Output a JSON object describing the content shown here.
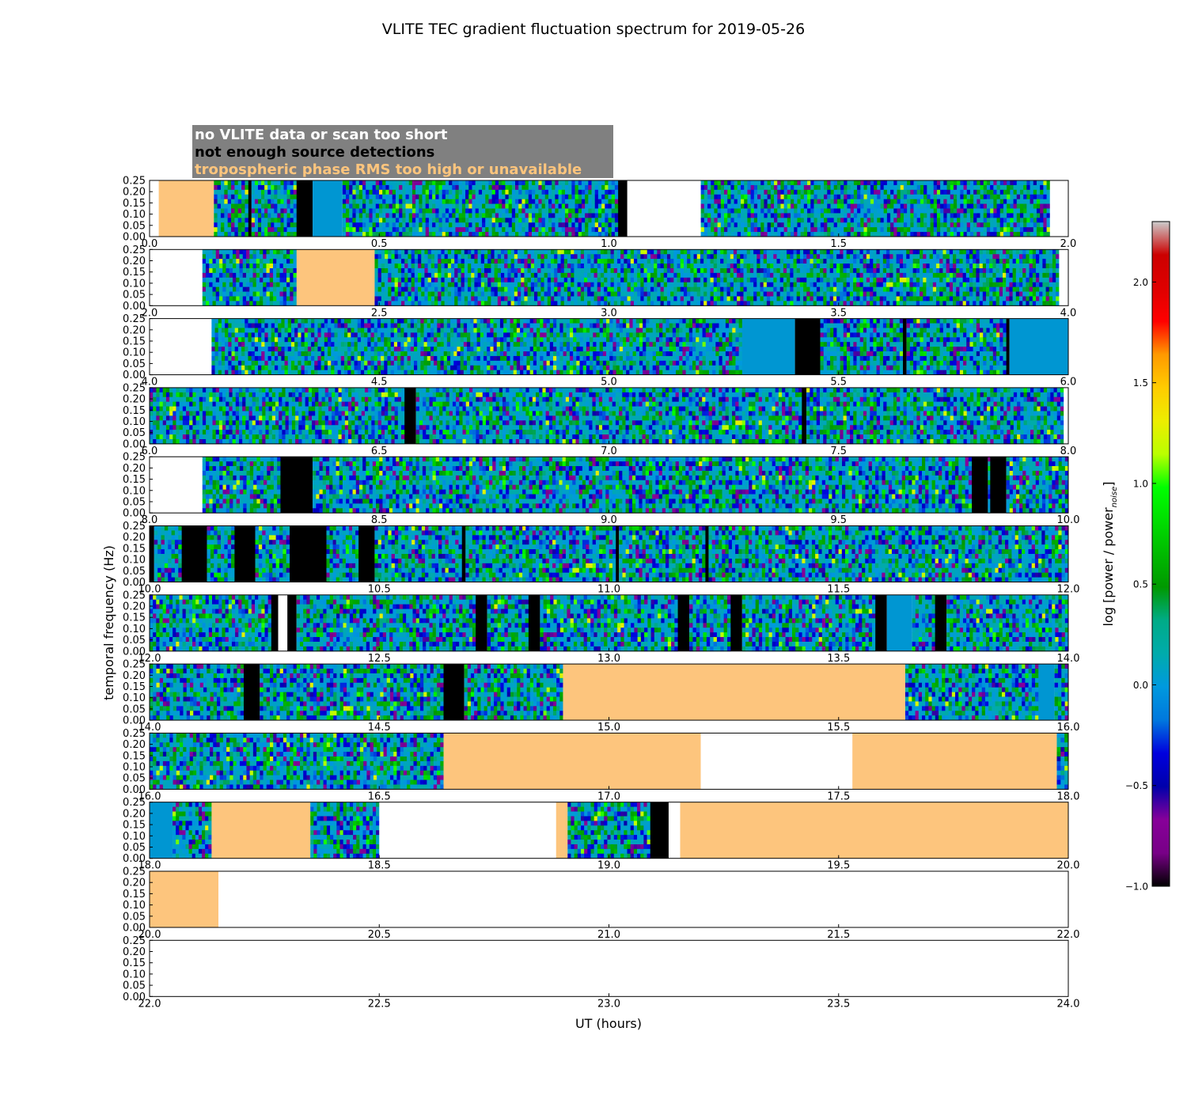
{
  "chart_data": {
    "type": "heatmap",
    "title": "VLITE TEC gradient fluctuation spectrum for 2019-05-26",
    "xlabel": "UT (hours)",
    "ylabel": "temporal frequency (Hz)",
    "ylim": [
      0,
      0.25
    ],
    "yticks": [
      "0.00",
      "0.05",
      "0.10",
      "0.15",
      "0.20",
      "0.25"
    ],
    "colorbar": {
      "label": "log [power / power",
      "label_sub": "noise",
      "label_end": "]",
      "range": [
        -1.0,
        2.3
      ],
      "ticks": [
        "−1.0",
        "−0.5",
        "0.0",
        "0.5",
        "1.0",
        "1.5",
        "2.0"
      ],
      "tick_values": [
        -1.0,
        -0.5,
        0.0,
        0.5,
        1.0,
        1.5,
        2.0
      ],
      "colormap": "nipy_spectral"
    },
    "legend": {
      "placement": "top-left",
      "background": "#808080",
      "entries": [
        {
          "label": "no VLITE data or scan too short",
          "color": "#ffffff"
        },
        {
          "label": "not enough source detections",
          "color": "#000000"
        },
        {
          "label": "tropospheric phase RMS too high or unavailable",
          "color": "#fdc57d"
        }
      ]
    },
    "flag_colors": {
      "nodata": "#ffffff",
      "nodet": "#000000",
      "trop": "#fdc57d",
      "quiet": "#0096d2"
    },
    "panels": [
      {
        "range": [
          0,
          2
        ],
        "ticks": [
          "0.0",
          "0.5",
          "1.0",
          "1.5",
          "2.0"
        ],
        "segments": [
          [
            "nodata",
            0.0,
            0.02
          ],
          [
            "trop",
            0.02,
            0.14
          ],
          [
            "data",
            0.14,
            0.215
          ],
          [
            "nodet",
            0.215,
            0.222
          ],
          [
            "data",
            0.222,
            0.32
          ],
          [
            "nodet",
            0.32,
            0.355
          ],
          [
            "quiet",
            0.355,
            0.42
          ],
          [
            "data",
            0.42,
            1.02
          ],
          [
            "nodet",
            1.02,
            1.04
          ],
          [
            "nodata",
            1.04,
            1.2
          ],
          [
            "data",
            1.2,
            1.96
          ],
          [
            "nodata",
            1.96,
            2.0
          ]
        ]
      },
      {
        "range": [
          2,
          4
        ],
        "ticks": [
          "2.0",
          "2.5",
          "3.0",
          "3.5",
          "4.0"
        ],
        "segments": [
          [
            "nodata",
            2.0,
            2.115
          ],
          [
            "data",
            2.115,
            2.32
          ],
          [
            "trop",
            2.32,
            2.49
          ],
          [
            "data",
            2.49,
            3.98
          ],
          [
            "nodata",
            3.98,
            4.0
          ]
        ]
      },
      {
        "range": [
          4,
          6
        ],
        "ticks": [
          "4.0",
          "4.5",
          "5.0",
          "5.5",
          "6.0"
        ],
        "segments": [
          [
            "nodata",
            4.0,
            4.135
          ],
          [
            "data",
            4.135,
            5.29
          ],
          [
            "quiet",
            5.29,
            5.405
          ],
          [
            "nodet",
            5.405,
            5.46
          ],
          [
            "data",
            5.46,
            5.64
          ],
          [
            "nodet",
            5.64,
            5.648
          ],
          [
            "data",
            5.648,
            5.865
          ],
          [
            "nodet",
            5.865,
            5.872
          ],
          [
            "quiet",
            5.872,
            6.0
          ]
        ]
      },
      {
        "range": [
          6,
          8
        ],
        "ticks": [
          "6.0",
          "6.5",
          "7.0",
          "7.5",
          "8.0"
        ],
        "segments": [
          [
            "data",
            6.0,
            6.555
          ],
          [
            "nodet",
            6.555,
            6.58
          ],
          [
            "data",
            6.58,
            7.42
          ],
          [
            "nodet",
            7.42,
            7.43
          ],
          [
            "data",
            7.43,
            7.99
          ],
          [
            "nodata",
            7.99,
            8.0
          ]
        ]
      },
      {
        "range": [
          8,
          10
        ],
        "ticks": [
          "8.0",
          "8.5",
          "9.0",
          "9.5",
          "10.0"
        ],
        "segments": [
          [
            "nodata",
            8.0,
            8.115
          ],
          [
            "data",
            8.115,
            8.285
          ],
          [
            "nodet",
            8.285,
            8.355
          ],
          [
            "data",
            8.355,
            9.79
          ],
          [
            "nodet",
            9.79,
            9.825
          ],
          [
            "data",
            9.825,
            9.83
          ],
          [
            "nodet",
            9.83,
            9.865
          ],
          [
            "data",
            9.865,
            10.0
          ]
        ]
      },
      {
        "range": [
          10,
          12
        ],
        "ticks": [
          "10.0",
          "10.5",
          "11.0",
          "11.5",
          "12.0"
        ],
        "segments": [
          [
            "nodet",
            10.0,
            10.01
          ],
          [
            "data",
            10.01,
            10.07
          ],
          [
            "nodet",
            10.07,
            10.125
          ],
          [
            "data",
            10.125,
            10.185
          ],
          [
            "nodet",
            10.185,
            10.23
          ],
          [
            "data",
            10.23,
            10.305
          ],
          [
            "nodet",
            10.305,
            10.385
          ],
          [
            "data",
            10.385,
            10.455
          ],
          [
            "nodet",
            10.455,
            10.49
          ],
          [
            "data",
            10.49,
            10.68
          ],
          [
            "nodet",
            10.68,
            10.688
          ],
          [
            "data",
            10.688,
            11.015
          ],
          [
            "nodet",
            11.015,
            11.022
          ],
          [
            "data",
            11.022,
            11.21
          ],
          [
            "nodet",
            11.21,
            11.217
          ],
          [
            "data",
            11.217,
            12.0
          ]
        ]
      },
      {
        "range": [
          12,
          14
        ],
        "ticks": [
          "12.0",
          "12.5",
          "13.0",
          "13.5",
          "14.0"
        ],
        "segments": [
          [
            "data",
            12.0,
            12.265
          ],
          [
            "nodet",
            12.265,
            12.28
          ],
          [
            "nodata",
            12.28,
            12.3
          ],
          [
            "nodet",
            12.3,
            12.32
          ],
          [
            "data",
            12.32,
            12.71
          ],
          [
            "nodet",
            12.71,
            12.735
          ],
          [
            "data",
            12.735,
            12.825
          ],
          [
            "nodet",
            12.825,
            12.85
          ],
          [
            "data",
            12.85,
            13.15
          ],
          [
            "nodet",
            13.15,
            13.175
          ],
          [
            "data",
            13.175,
            13.265
          ],
          [
            "nodet",
            13.265,
            13.29
          ],
          [
            "data",
            13.29,
            13.58
          ],
          [
            "nodet",
            13.58,
            13.605
          ],
          [
            "quiet",
            13.605,
            13.66
          ],
          [
            "data",
            13.66,
            13.71
          ],
          [
            "nodet",
            13.71,
            13.735
          ],
          [
            "data",
            13.735,
            14.0
          ]
        ]
      },
      {
        "range": [
          14,
          16
        ],
        "ticks": [
          "14.0",
          "14.5",
          "15.0",
          "15.5",
          "16.0"
        ],
        "segments": [
          [
            "data",
            14.0,
            14.205
          ],
          [
            "nodet",
            14.205,
            14.24
          ],
          [
            "data",
            14.24,
            14.64
          ],
          [
            "nodet",
            14.64,
            14.685
          ],
          [
            "data",
            14.685,
            14.9
          ],
          [
            "trop",
            14.9,
            15.645
          ],
          [
            "data",
            15.645,
            15.935
          ],
          [
            "quiet",
            15.935,
            15.97
          ],
          [
            "data",
            15.97,
            16.0
          ]
        ]
      },
      {
        "range": [
          16,
          18
        ],
        "ticks": [
          "16.0",
          "16.5",
          "17.0",
          "17.5",
          "18.0"
        ],
        "segments": [
          [
            "data",
            16.0,
            16.64
          ],
          [
            "trop",
            16.64,
            17.2
          ],
          [
            "nodata",
            17.2,
            17.53
          ],
          [
            "trop",
            17.53,
            17.975
          ],
          [
            "data",
            17.975,
            18.0
          ]
        ]
      },
      {
        "range": [
          18,
          20
        ],
        "ticks": [
          "18.0",
          "18.5",
          "19.0",
          "19.5",
          "20.0"
        ],
        "segments": [
          [
            "quiet",
            18.0,
            18.05
          ],
          [
            "data",
            18.05,
            18.135
          ],
          [
            "trop",
            18.135,
            18.35
          ],
          [
            "data",
            18.35,
            18.5
          ],
          [
            "nodata",
            18.5,
            18.885
          ],
          [
            "trop",
            18.885,
            18.91
          ],
          [
            "data",
            18.91,
            19.09
          ],
          [
            "nodet",
            19.09,
            19.13
          ],
          [
            "nodata",
            19.13,
            19.155
          ],
          [
            "trop",
            19.155,
            20.0
          ]
        ]
      },
      {
        "range": [
          20,
          22
        ],
        "ticks": [
          "20.0",
          "20.5",
          "21.0",
          "21.5",
          "22.0"
        ],
        "segments": [
          [
            "trop",
            20.0,
            20.15
          ],
          [
            "nodata",
            20.15,
            22.0
          ]
        ]
      },
      {
        "range": [
          22,
          24
        ],
        "ticks": [
          "22.0",
          "22.5",
          "23.0",
          "23.5",
          "24.0"
        ],
        "segments": [
          [
            "nodata",
            22.0,
            24.0
          ]
        ]
      }
    ]
  }
}
